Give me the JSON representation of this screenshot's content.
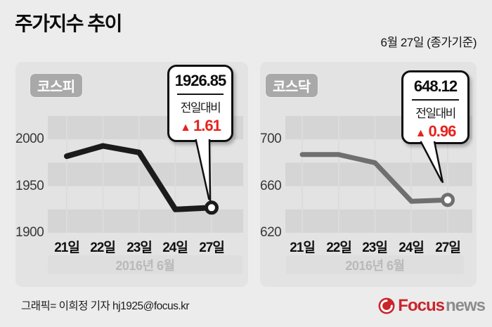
{
  "header": {
    "title": "주가지수 추이",
    "date_note": "6월 27일 (종가기준)"
  },
  "panels": [
    {
      "badge": "코스피",
      "y_ticks": [
        "2000",
        "1950",
        "1900"
      ],
      "x_ticks": [
        "21일",
        "22일",
        "23일",
        "24일",
        "27일"
      ],
      "month_label": "2016년 6월",
      "callout": {
        "value": "1926.85",
        "label": "전일대비",
        "arrow": "▲",
        "change": "1.61"
      }
    },
    {
      "badge": "코스닥",
      "y_ticks": [
        "700",
        "660",
        "620"
      ],
      "x_ticks": [
        "21일",
        "22일",
        "23일",
        "24일",
        "27일"
      ],
      "month_label": "2016년 6월",
      "callout": {
        "value": "648.12",
        "label": "전일대비",
        "arrow": "▲",
        "change": "0.96"
      }
    }
  ],
  "chart_data": [
    {
      "type": "line",
      "title": "코스피",
      "categories": [
        "21일",
        "22일",
        "23일",
        "24일",
        "27일"
      ],
      "values": [
        1982,
        1993,
        1986,
        1925,
        1926.85
      ],
      "ylim": [
        1900,
        2025
      ],
      "yticks": [
        1900,
        1950,
        2000
      ],
      "xlabel": "2016년 6월",
      "ylabel": "",
      "legend": "none",
      "grid": "horizontal-bands",
      "last_point_label": "1926.85 전일대비 ▲1.61"
    },
    {
      "type": "line",
      "title": "코스닥",
      "categories": [
        "21일",
        "22일",
        "23일",
        "24일",
        "27일"
      ],
      "values": [
        687,
        687,
        680,
        647,
        648.12
      ],
      "ylim": [
        620,
        720
      ],
      "yticks": [
        620,
        660,
        700
      ],
      "xlabel": "2016년 6월",
      "ylabel": "",
      "legend": "none",
      "grid": "horizontal-bands",
      "last_point_label": "648.12 전일대비 ▲0.96"
    }
  ],
  "footer": {
    "credit": "그래픽= 이희정 기자 hj1925@focus.kr",
    "logo_brand": "Focus",
    "logo_suffix": "news"
  },
  "colors": {
    "accent_red": "#e5231e",
    "kospi_line": "#1b1b1b",
    "kosdaq_line": "#6f6f6f",
    "panel_bg": "#e3e3e3",
    "stripe": "#d5d5d5",
    "badge_bg": "#a9a9a9",
    "logo_red": "#c9252b",
    "logo_gray": "#8c8c8c"
  }
}
